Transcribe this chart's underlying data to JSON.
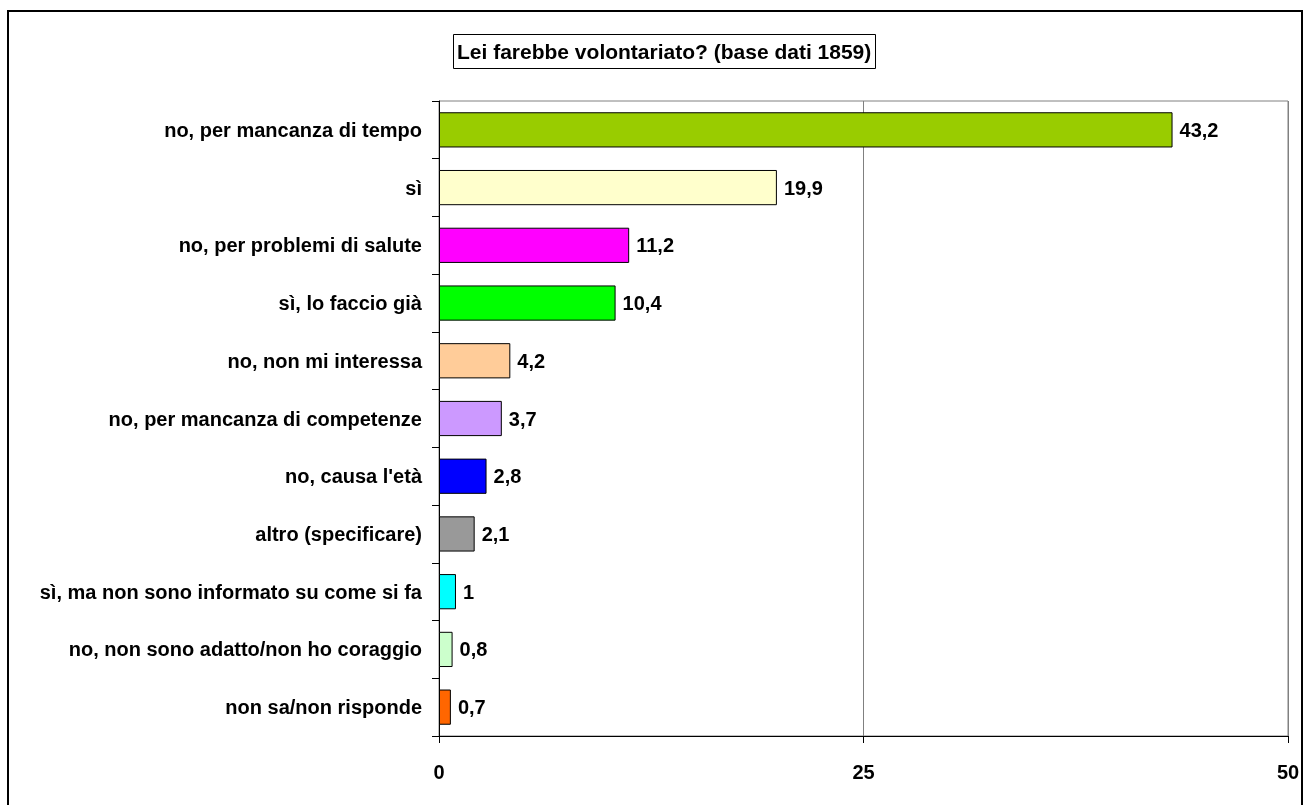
{
  "chart_data": {
    "type": "bar",
    "orientation": "horizontal",
    "title": "Lei farebbe volontariato? (base dati 1859)",
    "categories": [
      "no, per mancanza di tempo",
      "sì",
      "no, per problemi di salute",
      "sì, lo faccio già",
      "no, non mi interessa",
      "no, per mancanza di competenze",
      "no, causa l'età",
      "altro (specificare)",
      "sì, ma non sono informato su come si fa",
      "no, non sono adatto/non ho coraggio",
      "non sa/non risponde"
    ],
    "values": [
      43.2,
      19.9,
      11.2,
      10.4,
      4.2,
      3.7,
      2.8,
      2.1,
      1,
      0.8,
      0.7
    ],
    "value_labels": [
      "43,2",
      "19,9",
      "11,2",
      "10,4",
      "4,2",
      "3,7",
      "2,8",
      "2,1",
      "1",
      "0,8",
      "0,7"
    ],
    "colors": [
      "#99cc00",
      "#ffffcc",
      "#ff00ff",
      "#00ff00",
      "#ffcc99",
      "#cc99ff",
      "#0000ff",
      "#999999",
      "#00ffff",
      "#ccffcc",
      "#ff6600"
    ],
    "xlim": [
      0,
      50
    ],
    "xticks": [
      0,
      25,
      50
    ],
    "grid": "x"
  }
}
